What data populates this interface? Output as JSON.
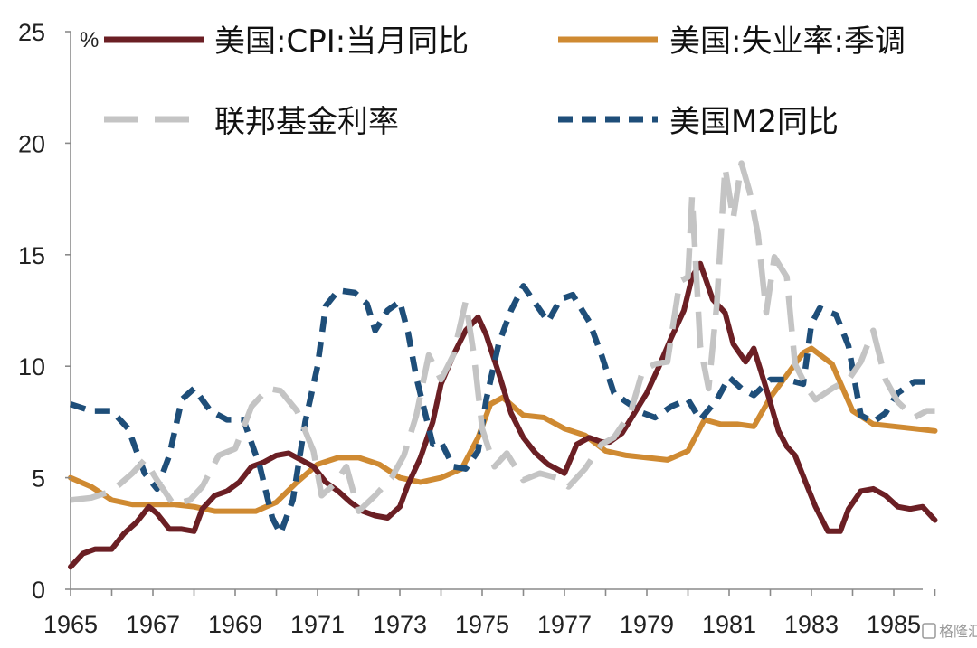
{
  "chart_data": {
    "type": "line",
    "title": "",
    "unit_label": "%",
    "xlabel": "",
    "ylabel": "",
    "xlim": [
      1965,
      1986.3
    ],
    "ylim": [
      0,
      25
    ],
    "y_ticks": [
      "0",
      "5",
      "10",
      "15",
      "20",
      "25"
    ],
    "x_ticks": [
      "1965",
      "1967",
      "1969",
      "1971",
      "1973",
      "1975",
      "1977",
      "1979",
      "1981",
      "1983",
      "1985"
    ],
    "watermark": "格隆汇",
    "series": [
      {
        "name": "美国:CPI:当月同比",
        "color": "#6b1f24",
        "style": "solid",
        "points": [
          [
            1965.0,
            1.0
          ],
          [
            1965.3,
            1.6
          ],
          [
            1965.6,
            1.8
          ],
          [
            1966.0,
            1.8
          ],
          [
            1966.3,
            2.5
          ],
          [
            1966.6,
            3.0
          ],
          [
            1966.9,
            3.7
          ],
          [
            1967.1,
            3.4
          ],
          [
            1967.4,
            2.7
          ],
          [
            1967.7,
            2.7
          ],
          [
            1968.0,
            2.6
          ],
          [
            1968.2,
            3.6
          ],
          [
            1968.5,
            4.2
          ],
          [
            1968.8,
            4.4
          ],
          [
            1969.1,
            4.8
          ],
          [
            1969.4,
            5.5
          ],
          [
            1969.7,
            5.7
          ],
          [
            1970.0,
            6.0
          ],
          [
            1970.3,
            6.1
          ],
          [
            1970.6,
            5.8
          ],
          [
            1970.9,
            5.5
          ],
          [
            1971.2,
            4.8
          ],
          [
            1971.5,
            4.4
          ],
          [
            1971.8,
            3.9
          ],
          [
            1972.1,
            3.5
          ],
          [
            1972.4,
            3.3
          ],
          [
            1972.7,
            3.2
          ],
          [
            1973.0,
            3.7
          ],
          [
            1973.2,
            4.7
          ],
          [
            1973.5,
            5.9
          ],
          [
            1973.8,
            7.5
          ],
          [
            1974.0,
            9.2
          ],
          [
            1974.3,
            10.5
          ],
          [
            1974.6,
            11.6
          ],
          [
            1974.9,
            12.2
          ],
          [
            1975.1,
            11.4
          ],
          [
            1975.4,
            9.7
          ],
          [
            1975.7,
            7.9
          ],
          [
            1976.0,
            6.8
          ],
          [
            1976.3,
            6.1
          ],
          [
            1976.6,
            5.6
          ],
          [
            1976.9,
            5.3
          ],
          [
            1977.0,
            5.2
          ],
          [
            1977.3,
            6.5
          ],
          [
            1977.6,
            6.8
          ],
          [
            1977.9,
            6.6
          ],
          [
            1978.1,
            6.6
          ],
          [
            1978.4,
            7.0
          ],
          [
            1978.7,
            7.9
          ],
          [
            1979.0,
            8.8
          ],
          [
            1979.3,
            10.0
          ],
          [
            1979.6,
            11.3
          ],
          [
            1979.9,
            12.5
          ],
          [
            1980.1,
            14.0
          ],
          [
            1980.3,
            14.6
          ],
          [
            1980.6,
            13.0
          ],
          [
            1980.9,
            12.4
          ],
          [
            1981.1,
            11.0
          ],
          [
            1981.4,
            10.2
          ],
          [
            1981.6,
            10.8
          ],
          [
            1981.9,
            9.0
          ],
          [
            1982.2,
            7.1
          ],
          [
            1982.4,
            6.4
          ],
          [
            1982.6,
            6.0
          ],
          [
            1982.9,
            4.6
          ],
          [
            1983.1,
            3.7
          ],
          [
            1983.4,
            2.6
          ],
          [
            1983.7,
            2.6
          ],
          [
            1983.9,
            3.6
          ],
          [
            1984.2,
            4.4
          ],
          [
            1984.5,
            4.5
          ],
          [
            1984.8,
            4.2
          ],
          [
            1985.1,
            3.7
          ],
          [
            1985.4,
            3.6
          ],
          [
            1985.7,
            3.7
          ],
          [
            1986.0,
            3.1
          ]
        ]
      },
      {
        "name": "美国:失业率:季调",
        "color": "#cf8a32",
        "style": "solid",
        "points": [
          [
            1965.0,
            5.0
          ],
          [
            1965.5,
            4.6
          ],
          [
            1966.0,
            4.0
          ],
          [
            1966.5,
            3.8
          ],
          [
            1967.0,
            3.8
          ],
          [
            1967.5,
            3.8
          ],
          [
            1968.0,
            3.7
          ],
          [
            1968.5,
            3.5
          ],
          [
            1969.0,
            3.5
          ],
          [
            1969.5,
            3.5
          ],
          [
            1970.0,
            3.9
          ],
          [
            1970.5,
            4.8
          ],
          [
            1971.0,
            5.6
          ],
          [
            1971.5,
            5.9
          ],
          [
            1972.0,
            5.9
          ],
          [
            1972.5,
            5.6
          ],
          [
            1973.0,
            5.0
          ],
          [
            1973.5,
            4.8
          ],
          [
            1974.0,
            5.0
          ],
          [
            1974.5,
            5.4
          ],
          [
            1974.9,
            6.8
          ],
          [
            1975.2,
            8.3
          ],
          [
            1975.5,
            8.6
          ],
          [
            1976.0,
            7.8
          ],
          [
            1976.5,
            7.7
          ],
          [
            1977.0,
            7.2
          ],
          [
            1977.5,
            6.9
          ],
          [
            1978.0,
            6.2
          ],
          [
            1978.5,
            6.0
          ],
          [
            1979.0,
            5.9
          ],
          [
            1979.5,
            5.8
          ],
          [
            1980.0,
            6.2
          ],
          [
            1980.4,
            7.6
          ],
          [
            1980.8,
            7.4
          ],
          [
            1981.2,
            7.4
          ],
          [
            1981.6,
            7.3
          ],
          [
            1982.0,
            8.6
          ],
          [
            1982.4,
            9.6
          ],
          [
            1982.8,
            10.6
          ],
          [
            1983.0,
            10.8
          ],
          [
            1983.5,
            10.1
          ],
          [
            1984.0,
            8.0
          ],
          [
            1984.5,
            7.4
          ],
          [
            1985.0,
            7.3
          ],
          [
            1985.5,
            7.2
          ],
          [
            1986.0,
            7.1
          ]
        ]
      },
      {
        "name": "联邦基金利率",
        "color": "#c4c4c4",
        "style": "long-dash",
        "points": [
          [
            1965.0,
            4.0
          ],
          [
            1965.5,
            4.1
          ],
          [
            1966.0,
            4.4
          ],
          [
            1966.5,
            5.2
          ],
          [
            1966.8,
            5.8
          ],
          [
            1967.1,
            4.9
          ],
          [
            1967.5,
            3.8
          ],
          [
            1967.9,
            4.0
          ],
          [
            1968.2,
            4.6
          ],
          [
            1968.6,
            6.0
          ],
          [
            1969.0,
            6.3
          ],
          [
            1969.4,
            8.2
          ],
          [
            1969.8,
            9.0
          ],
          [
            1970.1,
            8.9
          ],
          [
            1970.5,
            8.0
          ],
          [
            1970.9,
            6.2
          ],
          [
            1971.1,
            4.2
          ],
          [
            1971.4,
            4.7
          ],
          [
            1971.7,
            5.5
          ],
          [
            1972.0,
            3.5
          ],
          [
            1972.4,
            4.2
          ],
          [
            1972.8,
            5.0
          ],
          [
            1973.1,
            6.0
          ],
          [
            1973.4,
            7.8
          ],
          [
            1973.7,
            10.5
          ],
          [
            1974.0,
            9.4
          ],
          [
            1974.3,
            10.5
          ],
          [
            1974.6,
            12.9
          ],
          [
            1974.8,
            10.5
          ],
          [
            1975.0,
            7.2
          ],
          [
            1975.3,
            5.5
          ],
          [
            1975.6,
            6.1
          ],
          [
            1976.0,
            4.9
          ],
          [
            1976.4,
            5.2
          ],
          [
            1976.8,
            5.0
          ],
          [
            1977.1,
            4.6
          ],
          [
            1977.5,
            5.4
          ],
          [
            1977.9,
            6.5
          ],
          [
            1978.2,
            6.8
          ],
          [
            1978.6,
            7.9
          ],
          [
            1978.9,
            9.8
          ],
          [
            1979.2,
            10.1
          ],
          [
            1979.5,
            10.2
          ],
          [
            1979.8,
            13.8
          ],
          [
            1980.0,
            14.0
          ],
          [
            1980.1,
            17.6
          ],
          [
            1980.3,
            10.9
          ],
          [
            1980.5,
            9.0
          ],
          [
            1980.7,
            12.8
          ],
          [
            1980.9,
            18.9
          ],
          [
            1981.1,
            16.6
          ],
          [
            1981.3,
            19.1
          ],
          [
            1981.5,
            17.8
          ],
          [
            1981.7,
            15.9
          ],
          [
            1981.9,
            12.4
          ],
          [
            1982.1,
            14.9
          ],
          [
            1982.4,
            14.0
          ],
          [
            1982.6,
            10.1
          ],
          [
            1982.9,
            9.0
          ],
          [
            1983.1,
            8.5
          ],
          [
            1983.5,
            9.0
          ],
          [
            1983.9,
            9.4
          ],
          [
            1984.2,
            10.2
          ],
          [
            1984.5,
            11.6
          ],
          [
            1984.8,
            9.4
          ],
          [
            1985.1,
            8.4
          ],
          [
            1985.5,
            7.7
          ],
          [
            1985.8,
            8.0
          ],
          [
            1986.0,
            8.0
          ]
        ]
      },
      {
        "name": "美国M2同比",
        "color": "#1e4e79",
        "style": "short-dash",
        "points": [
          [
            1965.0,
            8.3
          ],
          [
            1965.5,
            8.0
          ],
          [
            1966.0,
            8.0
          ],
          [
            1966.4,
            7.2
          ],
          [
            1966.8,
            5.2
          ],
          [
            1967.1,
            4.5
          ],
          [
            1967.4,
            6.0
          ],
          [
            1967.7,
            8.5
          ],
          [
            1968.0,
            9.0
          ],
          [
            1968.4,
            8.0
          ],
          [
            1968.8,
            7.6
          ],
          [
            1969.2,
            7.6
          ],
          [
            1969.6,
            5.5
          ],
          [
            1969.9,
            3.2
          ],
          [
            1970.1,
            2.5
          ],
          [
            1970.4,
            4.0
          ],
          [
            1970.7,
            7.5
          ],
          [
            1971.0,
            10.0
          ],
          [
            1971.2,
            12.7
          ],
          [
            1971.5,
            13.4
          ],
          [
            1971.9,
            13.3
          ],
          [
            1972.2,
            12.8
          ],
          [
            1972.4,
            11.6
          ],
          [
            1972.7,
            12.5
          ],
          [
            1973.0,
            12.9
          ],
          [
            1973.2,
            11.5
          ],
          [
            1973.4,
            9.5
          ],
          [
            1973.6,
            8.0
          ],
          [
            1973.8,
            6.5
          ],
          [
            1974.0,
            6.6
          ],
          [
            1974.3,
            5.5
          ],
          [
            1974.6,
            5.4
          ],
          [
            1974.9,
            6.2
          ],
          [
            1975.1,
            8.5
          ],
          [
            1975.4,
            11.0
          ],
          [
            1975.7,
            12.5
          ],
          [
            1976.0,
            13.6
          ],
          [
            1976.3,
            12.8
          ],
          [
            1976.6,
            12.0
          ],
          [
            1976.9,
            13.0
          ],
          [
            1977.2,
            13.2
          ],
          [
            1977.6,
            12.0
          ],
          [
            1977.9,
            10.5
          ],
          [
            1978.2,
            8.8
          ],
          [
            1978.5,
            8.4
          ],
          [
            1978.9,
            7.9
          ],
          [
            1979.2,
            7.7
          ],
          [
            1979.6,
            8.2
          ],
          [
            1980.0,
            8.5
          ],
          [
            1980.3,
            7.6
          ],
          [
            1980.7,
            8.5
          ],
          [
            1981.0,
            9.5
          ],
          [
            1981.3,
            9.0
          ],
          [
            1981.6,
            8.7
          ],
          [
            1982.0,
            9.4
          ],
          [
            1982.4,
            9.4
          ],
          [
            1982.8,
            9.2
          ],
          [
            1983.0,
            11.9
          ],
          [
            1983.2,
            12.6
          ],
          [
            1983.6,
            12.3
          ],
          [
            1983.9,
            10.9
          ],
          [
            1984.2,
            7.8
          ],
          [
            1984.5,
            7.5
          ],
          [
            1984.8,
            7.9
          ],
          [
            1985.1,
            8.8
          ],
          [
            1985.5,
            9.3
          ],
          [
            1986.0,
            9.3
          ]
        ]
      }
    ]
  }
}
